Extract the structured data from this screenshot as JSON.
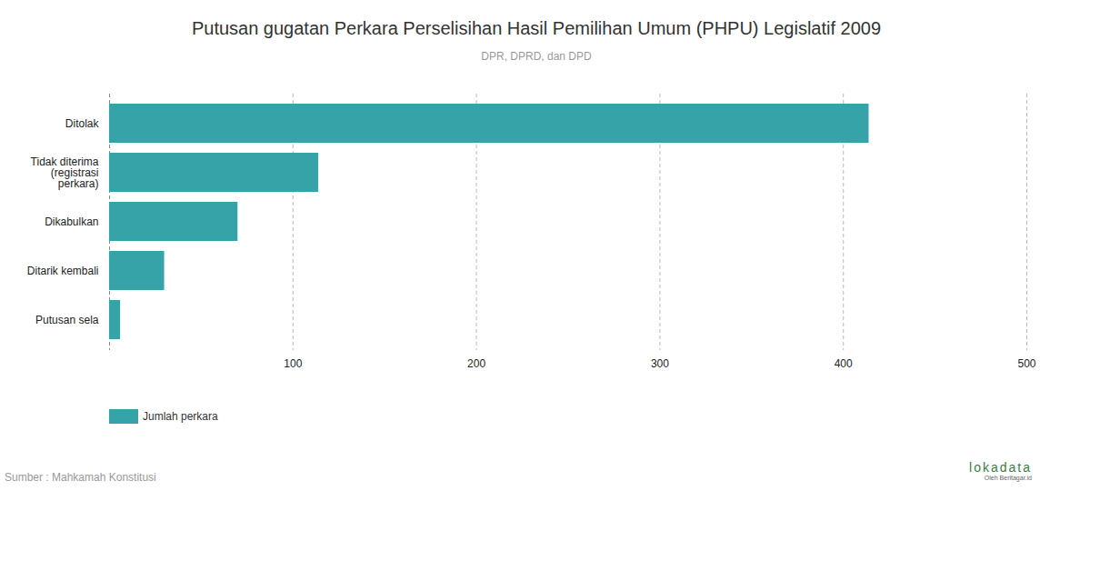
{
  "chart_data": {
    "type": "bar",
    "orientation": "horizontal",
    "title": "Putusan gugatan Perkara Perselisihan Hasil Pemilihan Umum (PHPU) Legislatif 2009",
    "subtitle": "DPR, DPRD, dan DPD",
    "categories": [
      "Ditolak",
      "Tidak diterima (registrasi perkara)",
      "Dikabulkan",
      "Ditarik kembali",
      "Putusan sela"
    ],
    "series": [
      {
        "name": "Jumlah perkara",
        "color": "#36a3a8",
        "values": [
          414,
          114,
          70,
          30,
          6
        ]
      }
    ],
    "xlim": [
      0,
      500
    ],
    "xticks": [
      100,
      200,
      300,
      400,
      500
    ],
    "grid": true,
    "legend": "bottom-left",
    "source": "Sumber : Mahkamah Konstitusi",
    "logo": "lokadata",
    "logo_subtitle": "Oleh Beritagar.id"
  }
}
